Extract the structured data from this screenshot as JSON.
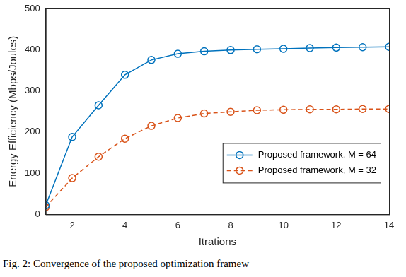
{
  "chart_data": {
    "type": "line",
    "x_label": "Itrations",
    "y_label": "Energy Efficiency (Mbps/Joules)",
    "caption": "Fig. 2: Convergence of the proposed optimization framew",
    "x": [
      1,
      2,
      3,
      4,
      5,
      6,
      7,
      8,
      9,
      10,
      11,
      12,
      13,
      14
    ],
    "series": [
      {
        "name": "Proposed framework, M = 64",
        "color": "#0072bd",
        "marker": "circle",
        "line_style": "solid",
        "values": [
          22,
          188,
          265,
          339,
          375,
          390,
          396,
          399,
          401,
          402,
          404,
          405,
          406,
          407
        ]
      },
      {
        "name": "Proposed framework, M = 32",
        "color": "#d95319",
        "marker": "circle",
        "line_style": "dashed",
        "values": [
          18,
          88,
          140,
          184,
          215,
          234,
          245,
          249,
          253,
          254,
          255,
          255,
          256,
          256
        ]
      }
    ],
    "xlim": [
      1,
      14
    ],
    "xticks": [
      2,
      4,
      6,
      8,
      10,
      12,
      14
    ],
    "ylim": [
      0,
      500
    ],
    "yticks": [
      0,
      100,
      200,
      300,
      400,
      500
    ],
    "grid": false,
    "legend": "lower right"
  }
}
